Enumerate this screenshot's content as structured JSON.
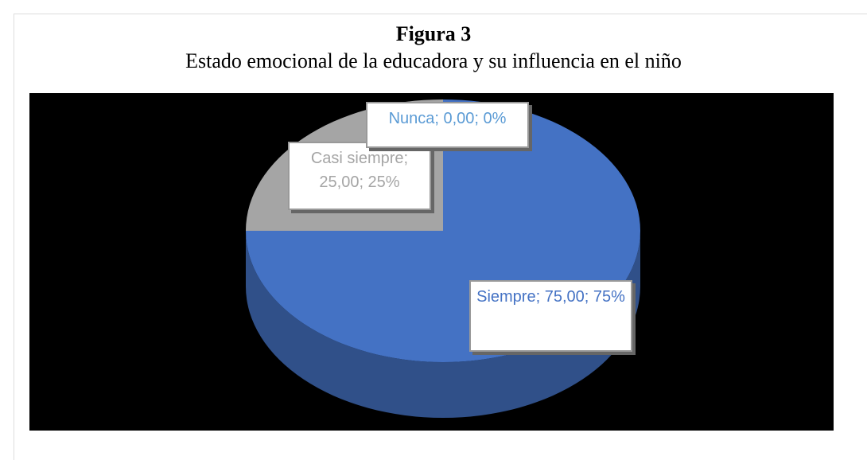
{
  "chart_data": {
    "type": "pie",
    "title": "Figura 3",
    "subtitle": "Estado emocional de la educadora y su influencia en el niño",
    "categories": [
      "Siempre",
      "Casi siempre",
      "Nunca"
    ],
    "values": [
      75,
      25,
      0
    ],
    "value_labels": [
      "Siempre; 75,00; 75%",
      "Casi siempre; 25,00; 25%",
      "Nunca; 0,00; 0%"
    ],
    "colors": [
      "#4472c4",
      "#a5a5a5",
      "#5b9bd5"
    ]
  }
}
